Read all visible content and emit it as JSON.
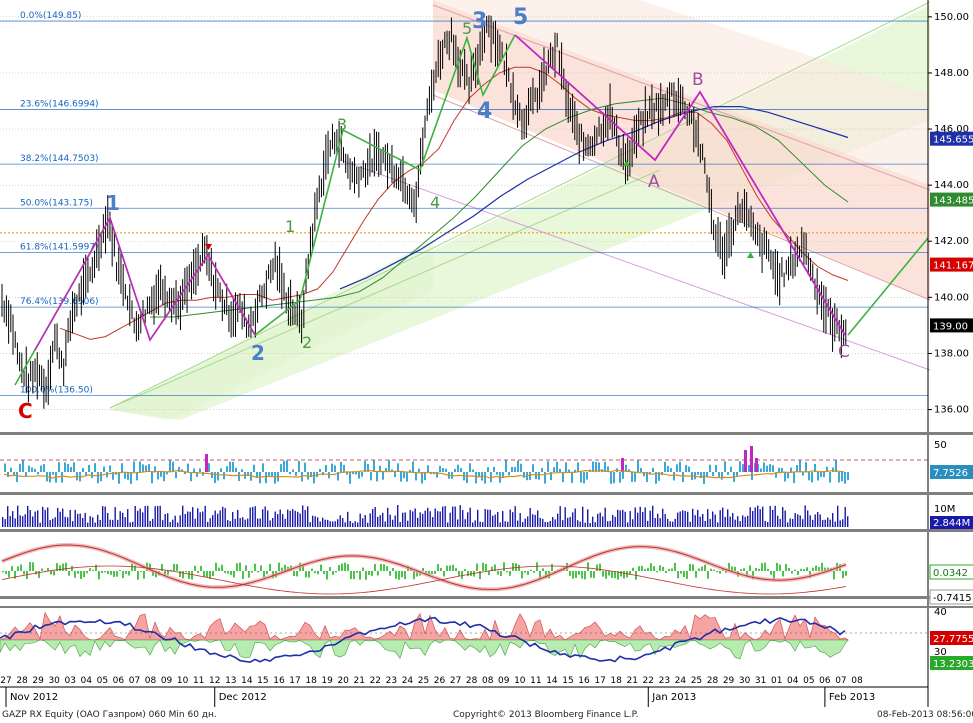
{
  "colors": {
    "background": "#ffffff",
    "price": "#000000",
    "fib_line": "#1565c0",
    "fib_text": "#1565c0",
    "orange_line": "#e8a020",
    "ma_fast": "#c0392b",
    "ma_mid": "#2e8b2e",
    "ma_slow": "#1f2fa8",
    "channel_green_fill": "#dff3cc",
    "channel_red_fill": "#f9d9d0",
    "wave_green": "#3cb33c",
    "wave_magenta": "#c227c2",
    "wave_label_blue": "#4a7fc9",
    "wave_label_green": "#4a9a4a",
    "wave_label_purple": "#9b4f9b",
    "wave_label_red": "#d40000",
    "panel_separator": "#7f7f7f"
  },
  "chart_data": {
    "type": "line",
    "title": "",
    "instrument": "GAZP RX Equity (OAO Газпром) 060 Min 60 дн.",
    "copyright": "Copyright© 2013 Bloomberg Finance L.P.",
    "timestamp": "08-Feb-2013 08:56:00",
    "ylim": [
      135.2,
      150.6
    ],
    "y_ticks": [
      "150.00",
      "148.00",
      "146.00",
      "144.00",
      "142.00",
      "140.00",
      "138.00",
      "136.00"
    ],
    "price_tags": [
      {
        "value": 145.6555,
        "label": "145.6555",
        "color": "#1f2fa8"
      },
      {
        "value": 143.4855,
        "label": "143.4855",
        "color": "#2e8b2e"
      },
      {
        "value": 141.1678,
        "label": "141.1678",
        "color": "#d40000"
      },
      {
        "value": 139.0,
        "label": "139.00",
        "color": "#000000"
      }
    ],
    "fib_levels": [
      {
        "label": "0.0%(149.85)",
        "value": 149.85
      },
      {
        "label": "23.6%(146.6994)",
        "value": 146.6994
      },
      {
        "label": "38.2%(144.7503)",
        "value": 144.7503
      },
      {
        "label": "50.0%(143.175)",
        "value": 143.175
      },
      {
        "label": "61.8%(141.5997)",
        "value": 141.5997
      },
      {
        "label": "76.4%(139.6506)",
        "value": 139.6506
      },
      {
        "label": "100.0%(136.50)",
        "value": 136.5
      }
    ],
    "orange_level": 142.3,
    "x_day_labels": [
      "27",
      "28",
      "29",
      "30",
      "03",
      "04",
      "05",
      "06",
      "07",
      "08",
      "09",
      "10",
      "11",
      "12",
      "13",
      "14",
      "15",
      "16",
      "17",
      "18",
      "19",
      "20",
      "21",
      "22",
      "23",
      "24",
      "25",
      "26",
      "27",
      "28",
      "08",
      "09",
      "10",
      "11",
      "14",
      "15",
      "16",
      "17",
      "18",
      "21",
      "22",
      "23",
      "24",
      "25",
      "28",
      "29",
      "30",
      "31",
      "01",
      "04",
      "05",
      "06",
      "07",
      "08"
    ],
    "x_month_labels": [
      {
        "label": "Nov 2012",
        "index": 0
      },
      {
        "label": "Dec 2012",
        "index": 13
      },
      {
        "label": "Jan 2013",
        "index": 40
      },
      {
        "label": "Feb 2013",
        "index": 51
      }
    ],
    "series": [
      {
        "name": "price",
        "values": [
          139.9,
          139.2,
          137.6,
          137.0,
          137.4,
          136.8,
          138.5,
          137.6,
          139.5,
          140.2,
          140.8,
          141.9,
          142.9,
          141.2,
          140.4,
          139.0,
          139.4,
          139.9,
          140.4,
          140.1,
          139.7,
          140.3,
          140.9,
          141.6,
          140.6,
          139.9,
          139.4,
          139.6,
          139.0,
          139.7,
          140.5,
          141.3,
          140.2,
          139.6,
          139.1,
          141.9,
          143.8,
          145.2,
          145.8,
          144.8,
          144.3,
          144.5,
          144.9,
          145.1,
          144.7,
          144.5,
          143.9,
          143.5,
          146.1,
          147.8,
          148.9,
          149.4,
          148.2,
          147.5,
          148.5,
          149.8,
          149.2,
          148.4,
          147.3,
          146.3,
          146.8,
          147.4,
          148.3,
          148.9,
          147.2,
          146.1,
          145.4,
          145.6,
          146.1,
          146.6,
          145.4,
          144.8,
          145.8,
          146.4,
          146.8,
          146.7,
          147.3,
          147.0,
          146.6,
          145.7,
          144.1,
          142.1,
          141.6,
          142.6,
          143.3,
          142.5,
          141.9,
          141.6,
          140.7,
          140.9,
          141.5,
          141.9,
          140.8,
          139.9,
          139.2,
          138.8,
          139.0
        ]
      },
      {
        "name": "ma_fast",
        "values": [
          138.9,
          138.7,
          138.5,
          138.6,
          138.9,
          139.2,
          139.5,
          139.8,
          139.9,
          139.9,
          140.0,
          140.0,
          140.1,
          140.1,
          139.9,
          140.0,
          140.1,
          140.3,
          140.9,
          141.8,
          142.7,
          143.5,
          144.1,
          144.5,
          144.8,
          145.3,
          146.3,
          147.1,
          147.6,
          148.0,
          148.2,
          148.2,
          148.0,
          147.6,
          147.1,
          146.7,
          146.5,
          146.4,
          146.3,
          146.3,
          146.4,
          146.6,
          146.6,
          146.2,
          145.6,
          144.6,
          143.6,
          142.8,
          142.2,
          141.6,
          141.1,
          140.8,
          140.6
        ]
      },
      {
        "name": "ma_mid",
        "values": [
          139.3,
          139.3,
          139.4,
          139.5,
          139.6,
          139.7,
          139.8,
          139.9,
          140.0,
          140.2,
          140.7,
          141.4,
          142.1,
          142.8,
          143.6,
          144.5,
          145.4,
          146.0,
          146.4,
          146.7,
          146.9,
          147.0,
          147.1,
          146.9,
          146.6,
          146.4,
          146.1,
          145.6,
          144.8,
          144.0,
          143.4
        ]
      },
      {
        "name": "ma_slow",
        "values": [
          140.3,
          140.7,
          141.2,
          141.7,
          142.3,
          142.9,
          143.6,
          144.2,
          144.7,
          145.2,
          145.6,
          145.9,
          146.3,
          146.6,
          146.8,
          146.8,
          146.6,
          146.3,
          146.0,
          145.7
        ]
      }
    ],
    "wave_labels": [
      {
        "text": "1",
        "color": "blue"
      },
      {
        "text": "2",
        "color": "blue"
      },
      {
        "text": "3",
        "color": "blue"
      },
      {
        "text": "4",
        "color": "blue"
      },
      {
        "text": "5",
        "color": "blue"
      },
      {
        "text": "1",
        "color": "green"
      },
      {
        "text": "2",
        "color": "green"
      },
      {
        "text": "3",
        "color": "green"
      },
      {
        "text": "4",
        "color": "green"
      },
      {
        "text": "5",
        "color": "green"
      },
      {
        "text": "A",
        "color": "purple"
      },
      {
        "text": "B",
        "color": "purple"
      },
      {
        "text": "C",
        "color": "purple"
      },
      {
        "text": "C",
        "color": "red"
      }
    ],
    "sub_panels": [
      {
        "name": "volatility",
        "labels": [
          "50",
          "7.7526"
        ]
      },
      {
        "name": "volume",
        "labels": [
          "10M",
          "2.844M"
        ]
      },
      {
        "name": "macd",
        "labels": [
          "0.0342",
          "-0.7415"
        ]
      },
      {
        "name": "dmi",
        "labels": [
          "40",
          "30",
          "27.7755",
          "13.2303"
        ]
      }
    ]
  }
}
